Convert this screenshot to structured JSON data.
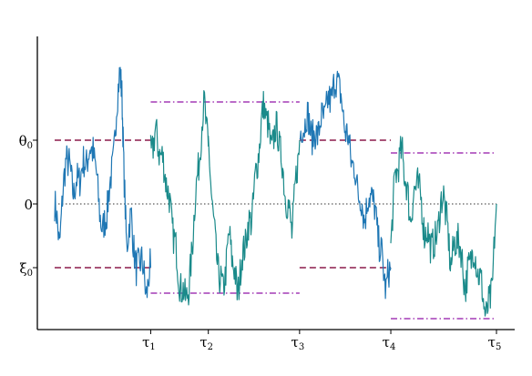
{
  "chart_data": {
    "type": "line",
    "title": "",
    "xlabel": "",
    "ylabel": "",
    "y_tick_labels": {
      "theta0": "θ0",
      "zero": "0",
      "xi0": "ξ0"
    },
    "y_levels": {
      "theta0": 1,
      "zero": 0,
      "xi0": -1
    },
    "x_tick_labels": [
      "τ1",
      "τ2",
      "τ3",
      "τ4",
      "τ5"
    ],
    "x_tick_positions": [
      1,
      1.6,
      2.55,
      3.5,
      4.6
    ],
    "xlim": [
      -0.2,
      4.8
    ],
    "ylim": [
      -2.0,
      2.65
    ],
    "grid": false,
    "colors": {
      "path_before_tau1": "#1f77b4",
      "path_alt": "#1a8a8a",
      "barrier": "#8b1a4a",
      "boundary": "#a33ab5",
      "axis": "#000000",
      "zero_line": "#333333"
    },
    "barriers": [
      {
        "segment": "0-τ1",
        "upper": 1,
        "lower": -1
      },
      {
        "segment": "τ3-τ4",
        "upper": 1,
        "lower": -1
      }
    ],
    "boundaries": [
      {
        "segment": "τ1-τ3",
        "upper": 1.6,
        "lower": -1.4
      },
      {
        "segment": "τ4-τ5",
        "upper": 0.8,
        "lower": -1.8
      }
    ],
    "path_segments": [
      {
        "from": 0,
        "to": 1,
        "color": "path_before_tau1",
        "anchors": [
          [
            0,
            0
          ],
          [
            0.05,
            -0.6
          ],
          [
            0.12,
            0.8
          ],
          [
            0.2,
            0.2
          ],
          [
            0.3,
            0.6
          ],
          [
            0.4,
            0.9
          ],
          [
            0.5,
            -0.5
          ],
          [
            0.58,
            0.3
          ],
          [
            0.62,
            0.9
          ],
          [
            0.68,
            2.2
          ],
          [
            0.7,
            1.7
          ],
          [
            0.72,
            0.5
          ],
          [
            0.75,
            -0.6
          ],
          [
            0.8,
            -0.2
          ],
          [
            0.85,
            -1.1
          ],
          [
            0.9,
            -0.8
          ],
          [
            0.95,
            -1.4
          ],
          [
            1,
            -1
          ]
        ]
      },
      {
        "from": 1,
        "to": 1.6,
        "color": "path_alt",
        "anchors": [
          [
            1,
            0.8
          ],
          [
            1.05,
            1.1
          ],
          [
            1.15,
            0.5
          ],
          [
            1.25,
            -0.6
          ],
          [
            1.32,
            -1.4
          ],
          [
            1.4,
            -1.4
          ],
          [
            1.45,
            -0.2
          ],
          [
            1.52,
            1.0
          ],
          [
            1.56,
            1.6
          ],
          [
            1.6,
            0.9
          ]
        ]
      },
      {
        "from": 1.6,
        "to": 2.55,
        "color": "path_alt",
        "anchors": [
          [
            1.6,
            0.9
          ],
          [
            1.68,
            -0.8
          ],
          [
            1.75,
            -1.4
          ],
          [
            1.82,
            -0.5
          ],
          [
            1.9,
            -1.4
          ],
          [
            1.98,
            -0.6
          ],
          [
            2.05,
            -0.2
          ],
          [
            2.12,
            0.8
          ],
          [
            2.18,
            1.6
          ],
          [
            2.25,
            0.9
          ],
          [
            2.32,
            1.2
          ],
          [
            2.4,
            0.2
          ],
          [
            2.47,
            -0.4
          ],
          [
            2.55,
            1.0
          ]
        ]
      },
      {
        "from": 2.55,
        "to": 3.5,
        "color": "path_before_tau1",
        "anchors": [
          [
            2.55,
            1.0
          ],
          [
            2.62,
            1.4
          ],
          [
            2.7,
            1.0
          ],
          [
            2.78,
            1.3
          ],
          [
            2.88,
            1.7
          ],
          [
            2.95,
            2.0
          ],
          [
            3.0,
            1.4
          ],
          [
            3.08,
            0.8
          ],
          [
            3.15,
            0.3
          ],
          [
            3.22,
            -0.2
          ],
          [
            3.3,
            0.2
          ],
          [
            3.38,
            -0.6
          ],
          [
            3.45,
            -1.3
          ],
          [
            3.5,
            -1.0
          ]
        ]
      },
      {
        "from": 3.5,
        "to": 4.6,
        "color": "path_alt",
        "anchors": [
          [
            3.5,
            -0.6
          ],
          [
            3.55,
            0.5
          ],
          [
            3.62,
            0.8
          ],
          [
            3.7,
            -0.2
          ],
          [
            3.78,
            0.4
          ],
          [
            3.85,
            -0.4
          ],
          [
            3.95,
            -0.7
          ],
          [
            4.05,
            0.2
          ],
          [
            4.12,
            -0.9
          ],
          [
            4.2,
            -0.5
          ],
          [
            4.28,
            -1.3
          ],
          [
            4.35,
            -0.7
          ],
          [
            4.42,
            -1.1
          ],
          [
            4.5,
            -1.8
          ],
          [
            4.56,
            -1.2
          ],
          [
            4.6,
            0
          ]
        ]
      }
    ]
  }
}
